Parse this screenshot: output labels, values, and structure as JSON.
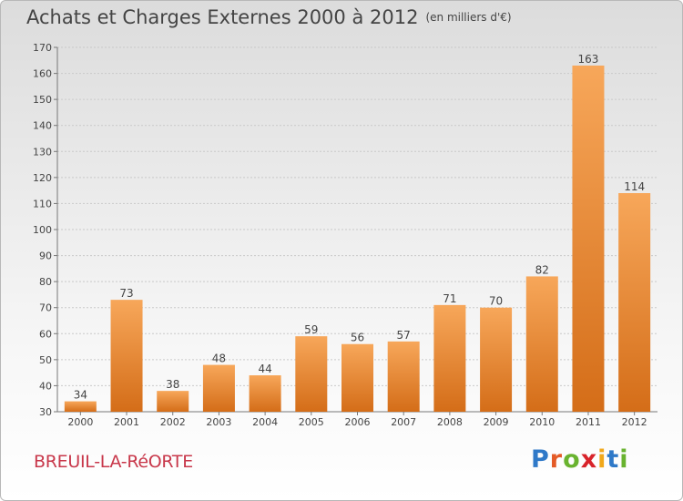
{
  "header": {
    "title": "Achats et Charges Externes 2000 à 2012",
    "unit": "(en milliers d'€)"
  },
  "footer": {
    "commune": "BREUIL-LA-RéORTE"
  },
  "logo": {
    "letters": [
      "P",
      "r",
      "o",
      "x",
      "i",
      "t",
      "i"
    ],
    "colors": [
      "#2f79c8",
      "#e45b27",
      "#69b32f",
      "#d8232a",
      "#f1a81b",
      "#2f79c8",
      "#69b32f"
    ]
  },
  "chart_data": {
    "type": "bar",
    "title": "Achats et Charges Externes 2000 à 2012",
    "categories": [
      "2000",
      "2001",
      "2002",
      "2003",
      "2004",
      "2005",
      "2006",
      "2007",
      "2008",
      "2009",
      "2010",
      "2011",
      "2012"
    ],
    "values": [
      34,
      73,
      38,
      48,
      44,
      59,
      56,
      57,
      71,
      70,
      82,
      163,
      114
    ],
    "ylim": [
      30,
      170
    ],
    "yticks": [
      30,
      40,
      50,
      60,
      70,
      80,
      90,
      100,
      110,
      120,
      130,
      140,
      150,
      160,
      170
    ],
    "grid": true,
    "bar_color_top": "#f7a75a",
    "bar_color_bottom": "#d46d18"
  }
}
